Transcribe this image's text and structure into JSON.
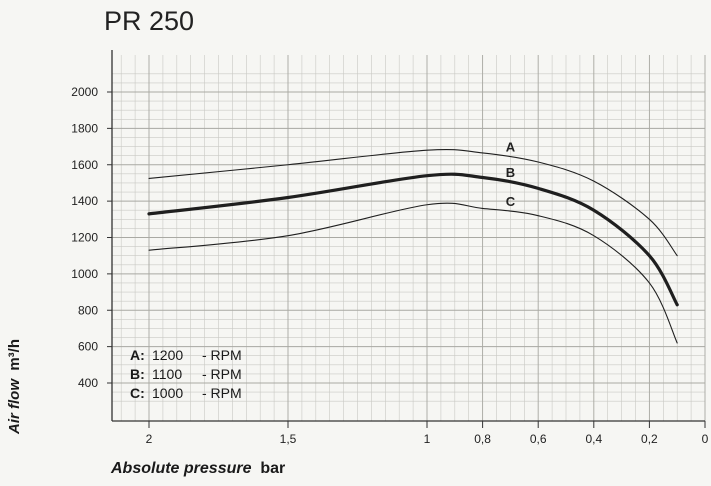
{
  "chart_data": {
    "type": "line",
    "title": "PR 250",
    "ylabel_italic": "Air flow",
    "ylabel_unit": "m³/h",
    "xlabel_italic": "Absolute pressure",
    "xlabel_unit": "bar",
    "x_axis_reversed": true,
    "xlim": [
      0,
      2.3
    ],
    "ylim": [
      200,
      2150
    ],
    "x_ticks": [
      {
        "value": 2,
        "label": "2"
      },
      {
        "value": 1.5,
        "label": "1,5"
      },
      {
        "value": 1,
        "label": "1"
      },
      {
        "value": 0.8,
        "label": "0,8"
      },
      {
        "value": 0.6,
        "label": "0,6"
      },
      {
        "value": 0.4,
        "label": "0,4"
      },
      {
        "value": 0.2,
        "label": "0,2"
      },
      {
        "value": 0,
        "label": "0"
      }
    ],
    "y_ticks": [
      {
        "value": 400,
        "label": "400"
      },
      {
        "value": 600,
        "label": "600"
      },
      {
        "value": 800,
        "label": "800"
      },
      {
        "value": 1000,
        "label": "1000"
      },
      {
        "value": 1200,
        "label": "1200"
      },
      {
        "value": 1400,
        "label": "1400"
      },
      {
        "value": 1600,
        "label": "1600"
      },
      {
        "value": 1800,
        "label": "1800"
      },
      {
        "value": 2000,
        "label": "2000"
      }
    ],
    "grid": true,
    "series": [
      {
        "name": "A",
        "x": [
          2,
          1.5,
          1,
          0.8,
          0.6,
          0.4,
          0.2,
          0.1
        ],
        "y": [
          1525,
          1600,
          1680,
          1665,
          1615,
          1510,
          1300,
          1100
        ]
      },
      {
        "name": "B",
        "x": [
          2,
          1.5,
          1,
          0.8,
          0.6,
          0.4,
          0.2,
          0.1
        ],
        "y": [
          1330,
          1420,
          1540,
          1530,
          1470,
          1350,
          1100,
          830
        ]
      },
      {
        "name": "C",
        "x": [
          2,
          1.5,
          1,
          0.8,
          0.6,
          0.4,
          0.2,
          0.1
        ],
        "y": [
          1130,
          1210,
          1380,
          1360,
          1320,
          1210,
          950,
          620
        ]
      }
    ],
    "legend": [
      {
        "key": "A:",
        "value": "1200",
        "unit": "- RPM"
      },
      {
        "key": "B:",
        "value": "1100",
        "unit": "- RPM"
      },
      {
        "key": "C:",
        "value": "1000",
        "unit": "- RPM"
      }
    ]
  }
}
